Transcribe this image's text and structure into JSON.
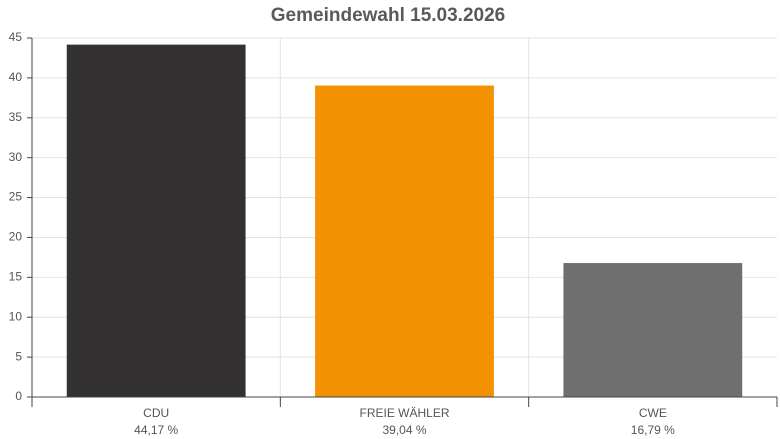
{
  "chart_data": {
    "type": "bar",
    "title": "Gemeindewahl 15.03.2026",
    "categories": [
      "CDU",
      "FREIE WÄHLER",
      "CWE"
    ],
    "values": [
      44.17,
      39.04,
      16.79
    ],
    "value_labels": [
      "44,17 %",
      "39,04 %",
      "16,79 %"
    ],
    "colors": [
      "#333132",
      "#f39200",
      "#6f6f6f"
    ],
    "ylim": [
      0,
      45
    ],
    "yticks": [
      0,
      5,
      10,
      15,
      20,
      25,
      30,
      35,
      40,
      45
    ],
    "grid": true
  }
}
